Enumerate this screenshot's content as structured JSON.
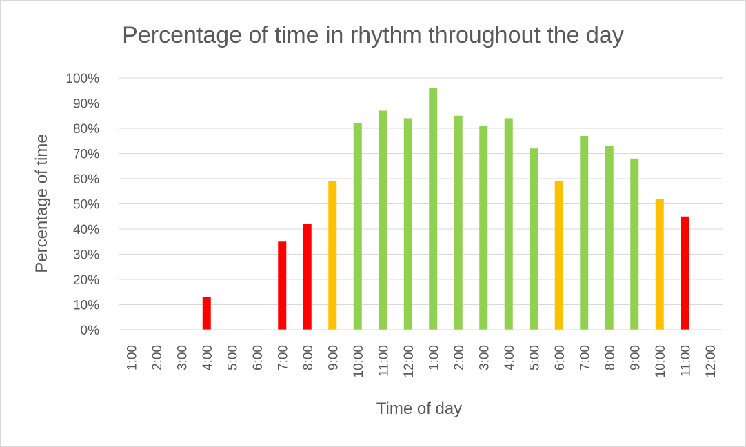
{
  "chart_data": {
    "type": "bar",
    "title": "Percentage of time in rhythm throughout the day",
    "xlabel": "Time of day",
    "ylabel": "Percentage of time",
    "ylim": [
      0,
      100
    ],
    "yticks": [
      "0%",
      "10%",
      "20%",
      "30%",
      "40%",
      "50%",
      "60%",
      "70%",
      "80%",
      "90%",
      "100%"
    ],
    "grid": true,
    "legend": "none",
    "categories": [
      "1:00",
      "2:00",
      "3:00",
      "4:00",
      "5:00",
      "6:00",
      "7:00",
      "8:00",
      "9:00",
      "10:00",
      "11:00",
      "12:00",
      "1:00",
      "2:00",
      "3:00",
      "4:00",
      "5:00",
      "6:00",
      "7:00",
      "8:00",
      "9:00",
      "10:00",
      "11:00",
      "12:00"
    ],
    "values": [
      0,
      0,
      0,
      13,
      0,
      0,
      35,
      42,
      59,
      82,
      87,
      84,
      96,
      85,
      81,
      84,
      72,
      59,
      77,
      73,
      68,
      52,
      45,
      0
    ],
    "colors": [
      "#ff0000",
      "#ff0000",
      "#ff0000",
      "#ff0000",
      "#ff0000",
      "#ff0000",
      "#ff0000",
      "#ff0000",
      "#ffc000",
      "#92d050",
      "#92d050",
      "#92d050",
      "#92d050",
      "#92d050",
      "#92d050",
      "#92d050",
      "#92d050",
      "#ffc000",
      "#92d050",
      "#92d050",
      "#92d050",
      "#ffc000",
      "#ff0000",
      "#ff0000"
    ]
  }
}
